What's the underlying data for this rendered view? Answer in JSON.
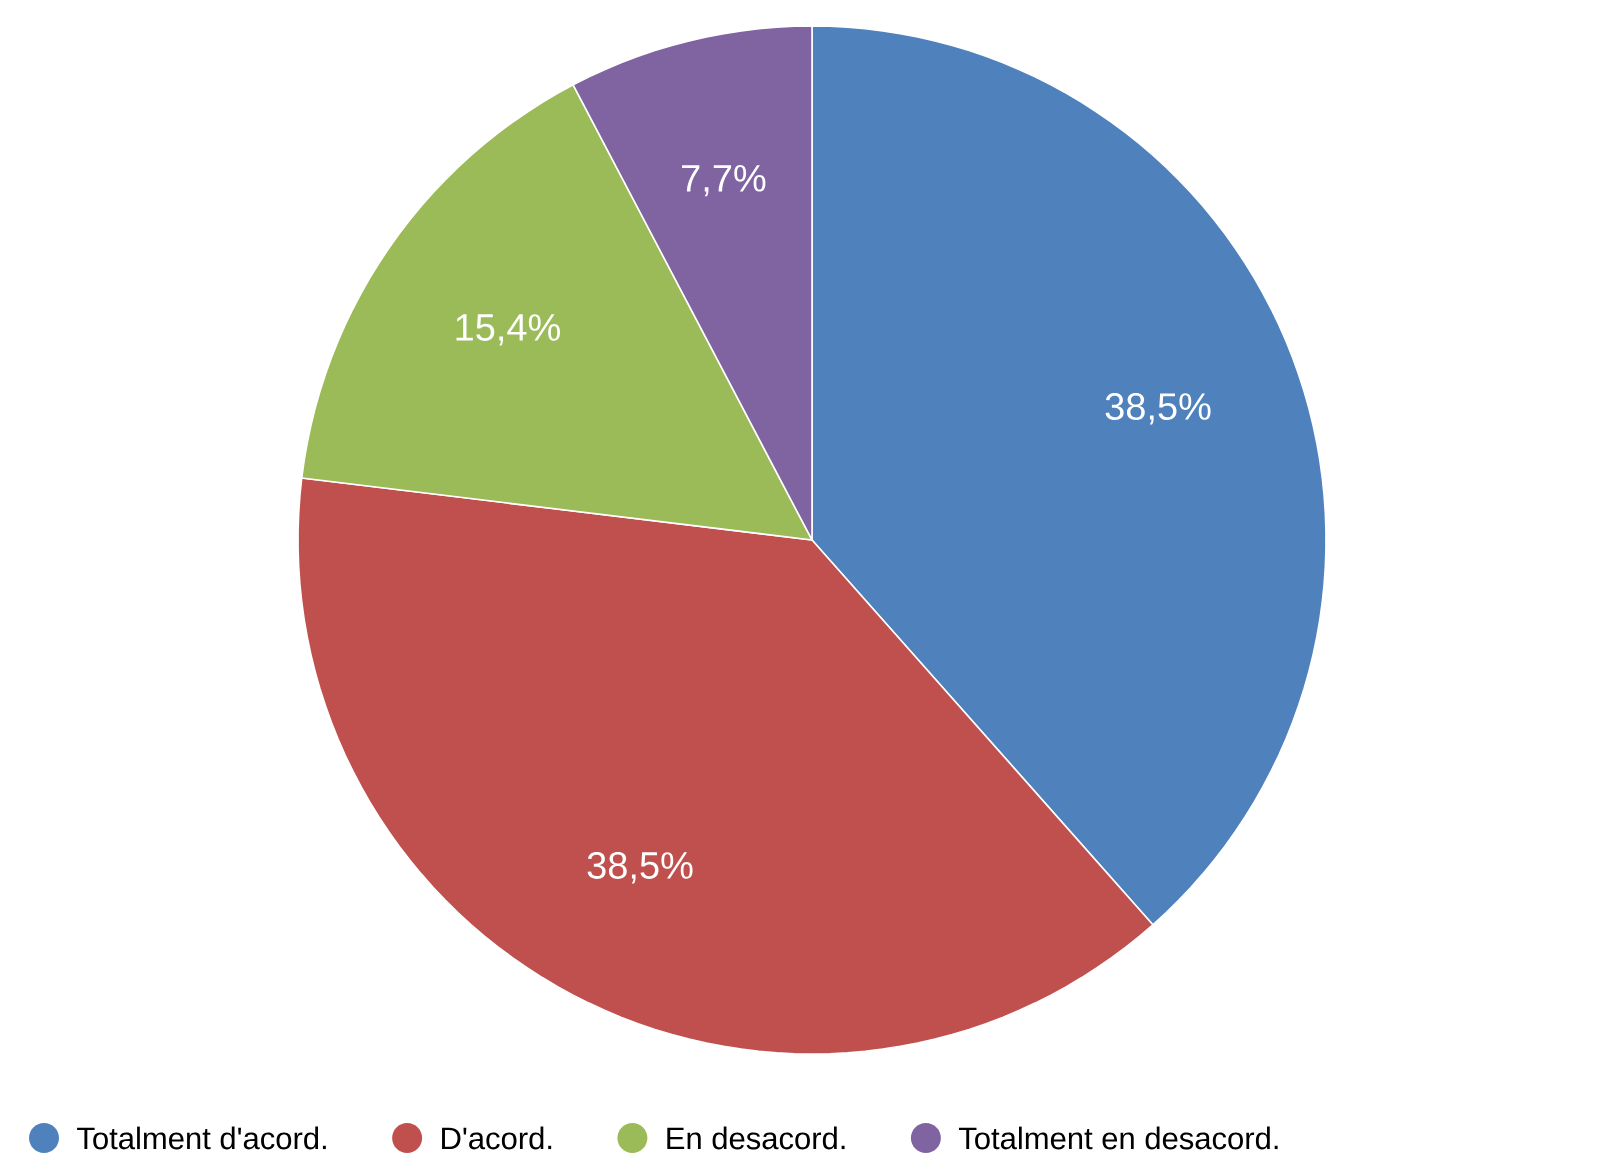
{
  "chart_data": {
    "type": "pie",
    "categories": [
      "Totalment d'acord.",
      "D'acord.",
      "En desacord.",
      "Totalment en desacord."
    ],
    "values": [
      38.5,
      38.5,
      15.4,
      7.7
    ],
    "colors": [
      "#4f81bd",
      "#c0504d",
      "#9bbb59",
      "#8064a2"
    ],
    "value_labels": [
      "38,5%",
      "38,5%",
      "15,4%",
      "7,7%"
    ],
    "legend": "bottom"
  }
}
